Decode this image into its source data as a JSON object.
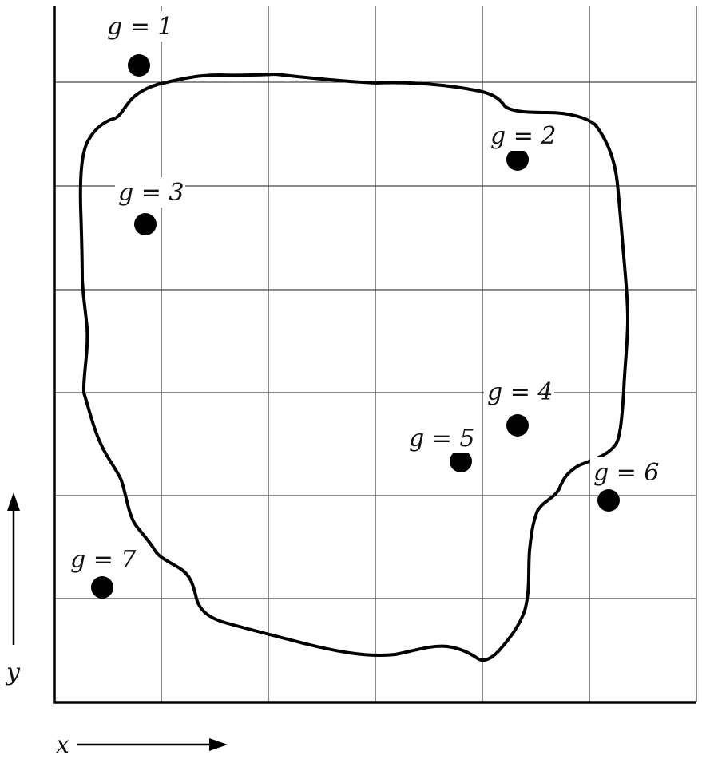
{
  "figure": {
    "points": [
      {
        "label": "g = 1"
      },
      {
        "label": "g = 2"
      },
      {
        "label": "g = 3"
      },
      {
        "label": "g = 4"
      },
      {
        "label": "g = 5"
      },
      {
        "label": "g = 6"
      },
      {
        "label": "g = 7"
      }
    ],
    "axes": {
      "x_label": "x",
      "y_label": "y"
    }
  }
}
